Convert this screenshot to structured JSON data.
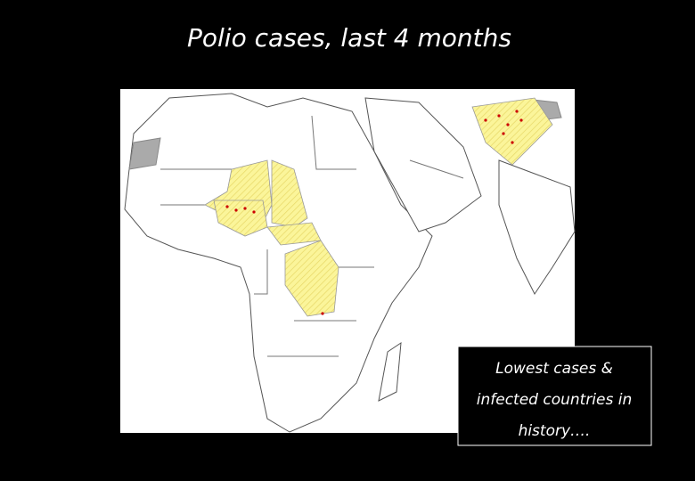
{
  "title": "Polio cases, last 4 months",
  "callout": {
    "lines": [
      "Lowest cases &",
      "infected countries in",
      "history…."
    ]
  }
}
